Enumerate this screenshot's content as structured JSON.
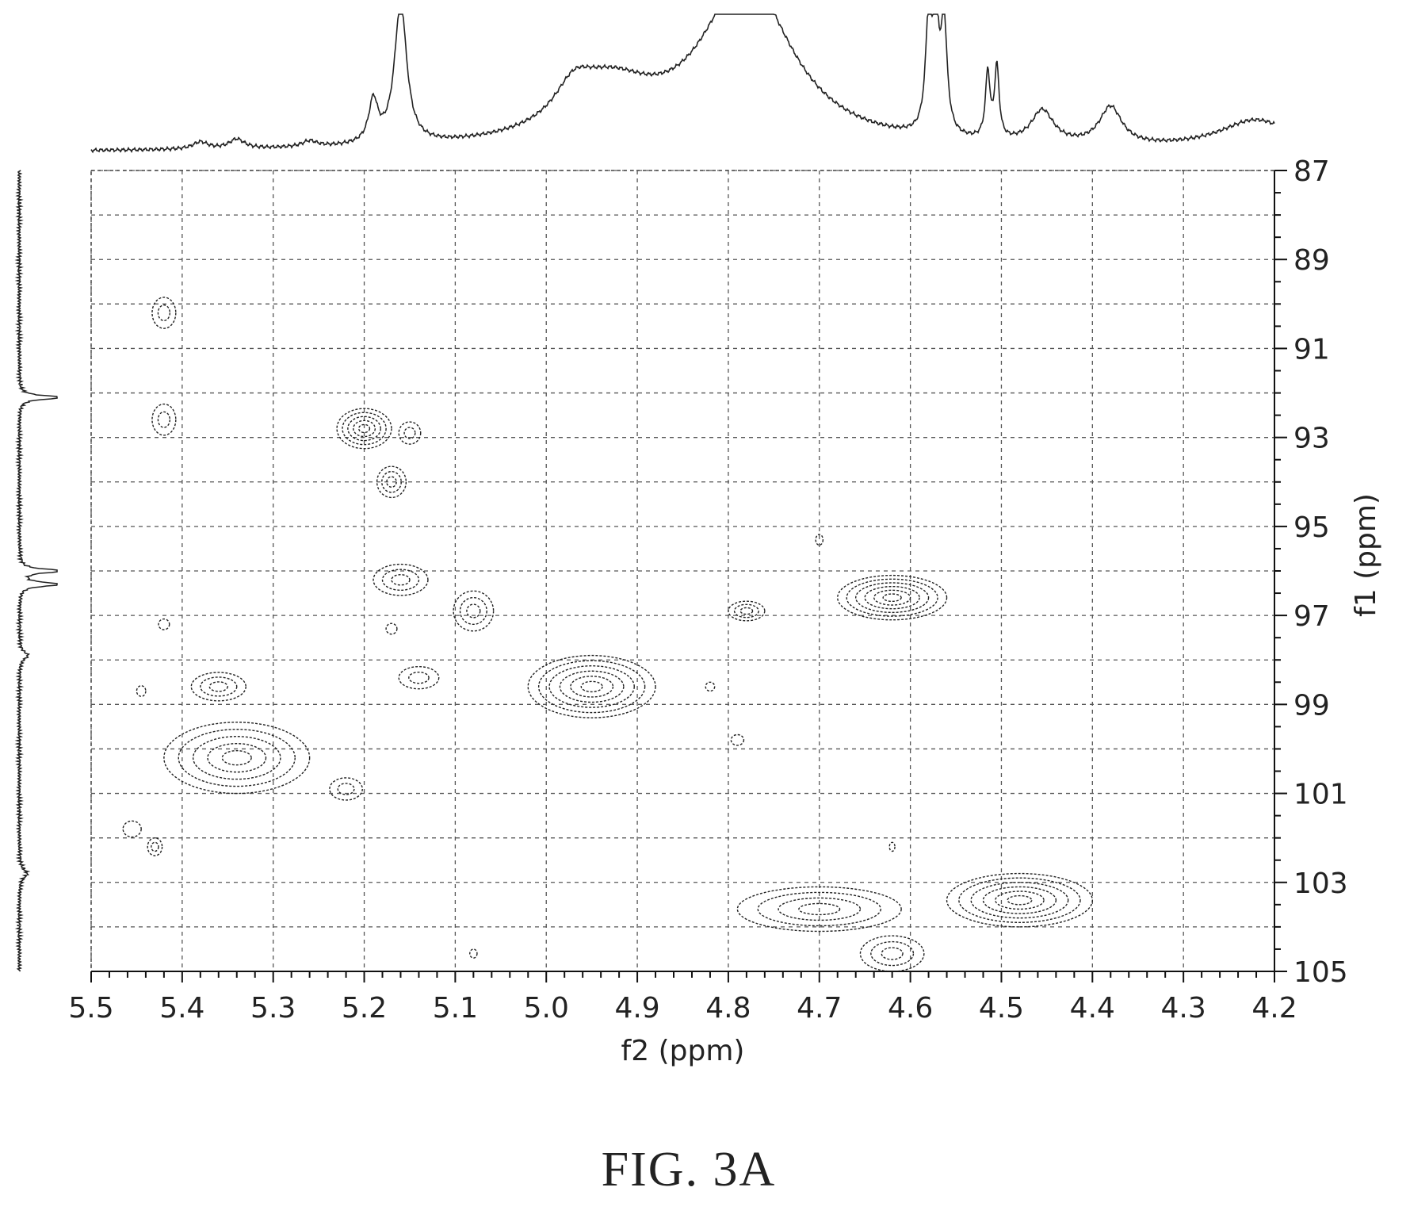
{
  "chart_data": {
    "type": "heatmap",
    "subtype": "2D NMR contour plot (HSQC) with 1D projections",
    "xlabel": "f2 (ppm)",
    "ylabel": "f1 (ppm)",
    "x_axis": {
      "range": [
        5.5,
        4.2
      ],
      "reversed": true,
      "ticks": [
        5.5,
        5.4,
        5.3,
        5.2,
        5.1,
        5.0,
        4.9,
        4.8,
        4.7,
        4.6,
        4.5,
        4.4,
        4.3,
        4.2
      ],
      "tick_labels": [
        "5.5",
        "5.4",
        "5.3",
        "5.2",
        "5.1",
        "5.0",
        "4.9",
        "4.8",
        "4.7",
        "4.6",
        "4.5",
        "4.4",
        "4.3",
        "4.2"
      ]
    },
    "y_axis": {
      "range": [
        87,
        105
      ],
      "reversed": true,
      "side": "right",
      "ticks": [
        87,
        89,
        91,
        93,
        95,
        97,
        99,
        101,
        103,
        105
      ],
      "tick_labels": [
        "87",
        "89",
        "91",
        "93",
        "95",
        "97",
        "99",
        "101",
        "103",
        "105"
      ]
    },
    "grid": true,
    "cross_peaks": [
      {
        "f2": 5.42,
        "f1": 90.2,
        "w": 0.013,
        "h": 0.35,
        "levels": 2
      },
      {
        "f2": 5.42,
        "f1": 92.6,
        "w": 0.013,
        "h": 0.35,
        "levels": 2
      },
      {
        "f2": 5.2,
        "f1": 92.8,
        "w": 0.03,
        "h": 0.45,
        "levels": 5
      },
      {
        "f2": 5.15,
        "f1": 92.9,
        "w": 0.012,
        "h": 0.25,
        "levels": 2
      },
      {
        "f2": 5.17,
        "f1": 94.0,
        "w": 0.016,
        "h": 0.35,
        "levels": 3
      },
      {
        "f2": 5.16,
        "f1": 96.2,
        "w": 0.03,
        "h": 0.35,
        "levels": 3
      },
      {
        "f2": 5.08,
        "f1": 96.9,
        "w": 0.022,
        "h": 0.45,
        "levels": 3
      },
      {
        "f2": 5.17,
        "f1": 97.3,
        "w": 0.006,
        "h": 0.12,
        "levels": 1
      },
      {
        "f2": 5.42,
        "f1": 97.2,
        "w": 0.006,
        "h": 0.12,
        "levels": 1
      },
      {
        "f2": 5.14,
        "f1": 98.4,
        "w": 0.022,
        "h": 0.25,
        "levels": 2
      },
      {
        "f2": 5.36,
        "f1": 98.6,
        "w": 0.03,
        "h": 0.32,
        "levels": 3
      },
      {
        "f2": 5.445,
        "f1": 98.7,
        "w": 0.005,
        "h": 0.12,
        "levels": 1
      },
      {
        "f2": 4.95,
        "f1": 98.6,
        "w": 0.07,
        "h": 0.7,
        "levels": 6
      },
      {
        "f2": 4.82,
        "f1": 98.6,
        "w": 0.005,
        "h": 0.1,
        "levels": 1
      },
      {
        "f2": 4.78,
        "f1": 96.9,
        "w": 0.02,
        "h": 0.22,
        "levels": 3
      },
      {
        "f2": 4.7,
        "f1": 95.3,
        "w": 0.004,
        "h": 0.12,
        "levels": 1
      },
      {
        "f2": 4.79,
        "f1": 99.8,
        "w": 0.007,
        "h": 0.12,
        "levels": 1
      },
      {
        "f2": 4.62,
        "f1": 96.6,
        "w": 0.06,
        "h": 0.5,
        "levels": 6
      },
      {
        "f2": 5.34,
        "f1": 100.2,
        "w": 0.08,
        "h": 0.8,
        "levels": 5
      },
      {
        "f2": 5.22,
        "f1": 100.9,
        "w": 0.018,
        "h": 0.25,
        "levels": 2
      },
      {
        "f2": 5.455,
        "f1": 101.8,
        "w": 0.01,
        "h": 0.18,
        "levels": 1
      },
      {
        "f2": 5.43,
        "f1": 102.2,
        "w": 0.008,
        "h": 0.2,
        "levels": 2
      },
      {
        "f2": 4.62,
        "f1": 102.2,
        "w": 0.003,
        "h": 0.1,
        "levels": 1
      },
      {
        "f2": 4.48,
        "f1": 103.4,
        "w": 0.08,
        "h": 0.6,
        "levels": 6
      },
      {
        "f2": 4.7,
        "f1": 103.6,
        "w": 0.09,
        "h": 0.5,
        "levels": 4
      },
      {
        "f2": 4.62,
        "f1": 104.6,
        "w": 0.035,
        "h": 0.4,
        "levels": 3
      },
      {
        "f2": 5.08,
        "f1": 104.6,
        "w": 0.004,
        "h": 0.1,
        "levels": 1
      }
    ],
    "f2_projection_peaks": [
      {
        "ppm": 5.19,
        "height": 0.35,
        "width": 0.006
      },
      {
        "ppm": 5.16,
        "height": 1.2,
        "width": 0.008
      },
      {
        "ppm": 4.93,
        "height": 0.45,
        "width": 0.06
      },
      {
        "ppm": 4.97,
        "height": 0.25,
        "width": 0.025
      },
      {
        "ppm": 4.78,
        "height": 1.4,
        "width": 0.06
      },
      {
        "ppm": 4.58,
        "height": 0.9,
        "width": 0.004
      },
      {
        "ppm": 4.572,
        "height": 0.95,
        "width": 0.004
      },
      {
        "ppm": 4.563,
        "height": 0.9,
        "width": 0.004
      },
      {
        "ppm": 4.515,
        "height": 0.55,
        "width": 0.003
      },
      {
        "ppm": 4.505,
        "height": 0.6,
        "width": 0.003
      },
      {
        "ppm": 4.455,
        "height": 0.28,
        "width": 0.015
      },
      {
        "ppm": 4.38,
        "height": 0.32,
        "width": 0.015
      },
      {
        "ppm": 5.34,
        "height": 0.08,
        "width": 0.01
      },
      {
        "ppm": 5.38,
        "height": 0.06,
        "width": 0.01
      },
      {
        "ppm": 5.26,
        "height": 0.05,
        "width": 0.01
      },
      {
        "ppm": 4.22,
        "height": 0.25,
        "width": 0.05
      }
    ],
    "f1_projection_peaks": [
      {
        "ppm": 92.1,
        "height": 1.0,
        "width": 0.05
      },
      {
        "ppm": 96.0,
        "height": 1.0,
        "width": 0.05
      },
      {
        "ppm": 96.3,
        "height": 1.0,
        "width": 0.05
      },
      {
        "ppm": 97.9,
        "height": 0.2,
        "width": 0.1
      },
      {
        "ppm": 102.8,
        "height": 0.18,
        "width": 0.12
      }
    ]
  },
  "caption": "FIG. 3A"
}
